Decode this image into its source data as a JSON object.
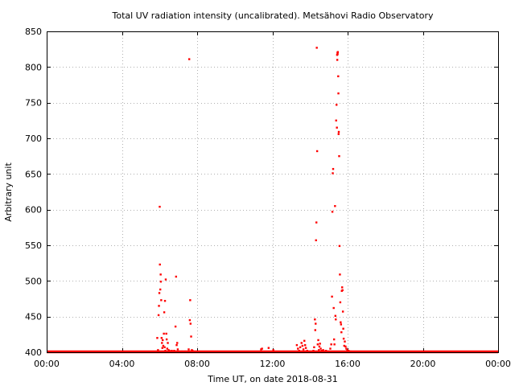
{
  "chart_data": {
    "type": "scatter",
    "title": "Total UV radiation intensity (uncalibrated). Metsähovi Radio Observatory",
    "xlabel": "Time UT, on date 2018-08-31",
    "ylabel": "Arbitrary unit",
    "xlim": [
      0,
      24
    ],
    "ylim": [
      400,
      850
    ],
    "x_unit": "hours UT",
    "x_ticks": [
      {
        "value": 0,
        "label": "00:00"
      },
      {
        "value": 4,
        "label": "04:00"
      },
      {
        "value": 8,
        "label": "08:00"
      },
      {
        "value": 12,
        "label": "12:00"
      },
      {
        "value": 16,
        "label": "16:00"
      },
      {
        "value": 20,
        "label": "20:00"
      },
      {
        "value": 24,
        "label": "00:00"
      }
    ],
    "y_ticks": [
      {
        "value": 400,
        "label": "400"
      },
      {
        "value": 450,
        "label": "450"
      },
      {
        "value": 500,
        "label": "500"
      },
      {
        "value": 550,
        "label": "550"
      },
      {
        "value": 600,
        "label": "600"
      },
      {
        "value": 650,
        "label": "650"
      },
      {
        "value": 700,
        "label": "700"
      },
      {
        "value": 750,
        "label": "750"
      },
      {
        "value": 800,
        "label": "800"
      },
      {
        "value": 850,
        "label": "850"
      }
    ],
    "grid": true,
    "marker_color": "#ff0000",
    "baseline": {
      "y": 400,
      "x_from": 0,
      "x_to": 24
    },
    "series": [
      {
        "points": [
          [
            5.88,
            420
          ],
          [
            5.92,
            403
          ],
          [
            5.95,
            452
          ],
          [
            5.97,
            465
          ],
          [
            5.99,
            483
          ],
          [
            6.01,
            604
          ],
          [
            6.02,
            523
          ],
          [
            6.04,
            488
          ],
          [
            6.06,
            509
          ],
          [
            6.07,
            499
          ],
          [
            6.09,
            473
          ],
          [
            6.11,
            420
          ],
          [
            6.13,
            413
          ],
          [
            6.15,
            406
          ],
          [
            6.17,
            417
          ],
          [
            6.2,
            409
          ],
          [
            6.23,
            426
          ],
          [
            6.25,
            456
          ],
          [
            6.27,
            407
          ],
          [
            6.29,
            472
          ],
          [
            6.31,
            402
          ],
          [
            6.33,
            502
          ],
          [
            6.36,
            426
          ],
          [
            6.38,
            418
          ],
          [
            6.41,
            405
          ],
          [
            6.44,
            413
          ],
          [
            6.48,
            403
          ],
          [
            6.52,
            402
          ],
          [
            6.58,
            401
          ],
          [
            6.65,
            402
          ],
          [
            6.72,
            401
          ],
          [
            6.78,
            402
          ],
          [
            6.85,
            436
          ],
          [
            6.88,
            506
          ],
          [
            6.91,
            410
          ],
          [
            6.94,
            413
          ],
          [
            6.97,
            404
          ],
          [
            7.05,
            401
          ],
          [
            7.2,
            401
          ],
          [
            7.35,
            401
          ],
          [
            7.55,
            404
          ],
          [
            7.58,
            811
          ],
          [
            7.61,
            445
          ],
          [
            7.63,
            473
          ],
          [
            7.65,
            440
          ],
          [
            7.68,
            422
          ],
          [
            7.72,
            403
          ],
          [
            7.75,
            402
          ],
          [
            7.8,
            401
          ],
          [
            11.4,
            404
          ],
          [
            11.45,
            405
          ],
          [
            11.8,
            406
          ],
          [
            12.05,
            403
          ],
          [
            13.3,
            410
          ],
          [
            13.36,
            405
          ],
          [
            13.42,
            402
          ],
          [
            13.48,
            407
          ],
          [
            13.55,
            413
          ],
          [
            13.6,
            409
          ],
          [
            13.65,
            404
          ],
          [
            13.7,
            416
          ],
          [
            13.74,
            410
          ],
          [
            13.78,
            406
          ],
          [
            13.85,
            402
          ],
          [
            14.18,
            402
          ],
          [
            14.22,
            407
          ],
          [
            14.26,
            446
          ],
          [
            14.28,
            431
          ],
          [
            14.3,
            440
          ],
          [
            14.32,
            557
          ],
          [
            14.34,
            582
          ],
          [
            14.36,
            827
          ],
          [
            14.38,
            682
          ],
          [
            14.41,
            411
          ],
          [
            14.44,
            417
          ],
          [
            14.47,
            403
          ],
          [
            14.5,
            408
          ],
          [
            14.53,
            412
          ],
          [
            14.57,
            405
          ],
          [
            14.62,
            402
          ],
          [
            14.7,
            403
          ],
          [
            14.78,
            401
          ],
          [
            14.85,
            402
          ],
          [
            14.95,
            401
          ],
          [
            15.08,
            405
          ],
          [
            15.13,
            411
          ],
          [
            15.17,
            478
          ],
          [
            15.19,
            597
          ],
          [
            15.21,
            651
          ],
          [
            15.23,
            657
          ],
          [
            15.26,
            462
          ],
          [
            15.28,
            418
          ],
          [
            15.3,
            411
          ],
          [
            15.33,
            605
          ],
          [
            15.35,
            451
          ],
          [
            15.37,
            446
          ],
          [
            15.39,
            725
          ],
          [
            15.41,
            747
          ],
          [
            15.43,
            715
          ],
          [
            15.44,
            817
          ],
          [
            15.45,
            810
          ],
          [
            15.46,
            820
          ],
          [
            15.47,
            818
          ],
          [
            15.48,
            821
          ],
          [
            15.5,
            787
          ],
          [
            15.51,
            763
          ],
          [
            15.52,
            706
          ],
          [
            15.53,
            709
          ],
          [
            15.55,
            675
          ],
          [
            15.57,
            549
          ],
          [
            15.59,
            509
          ],
          [
            15.61,
            470
          ],
          [
            15.63,
            442
          ],
          [
            15.65,
            439
          ],
          [
            15.67,
            428
          ],
          [
            15.69,
            486
          ],
          [
            15.71,
            491
          ],
          [
            15.73,
            487
          ],
          [
            15.75,
            457
          ],
          [
            15.77,
            433
          ],
          [
            15.79,
            419
          ],
          [
            15.82,
            409
          ],
          [
            15.85,
            415
          ],
          [
            15.89,
            408
          ],
          [
            15.93,
            405
          ],
          [
            15.98,
            403
          ],
          [
            16.05,
            402
          ],
          [
            16.15,
            401
          ]
        ]
      }
    ]
  }
}
